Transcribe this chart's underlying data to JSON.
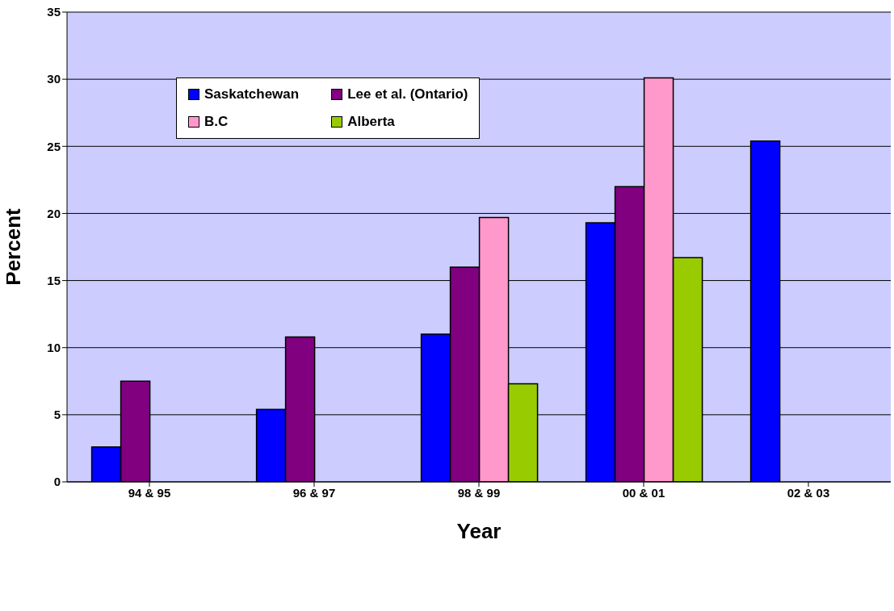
{
  "chart_data": {
    "type": "bar",
    "xlabel": "Year",
    "ylabel": "Percent",
    "categories": [
      "94 & 95",
      "96 & 97",
      "98 & 99",
      "00 & 01",
      "02 & 03"
    ],
    "series": [
      {
        "name": "Saskatchewan",
        "color": "#0000ff",
        "values": [
          2.6,
          5.4,
          11.0,
          19.3,
          25.4
        ]
      },
      {
        "name": "Lee et al. (Ontario)",
        "color": "#800080",
        "values": [
          7.5,
          10.8,
          16.0,
          22.0,
          null
        ]
      },
      {
        "name": "B.C",
        "color": "#ff99cc",
        "values": [
          null,
          null,
          19.7,
          30.1,
          null
        ]
      },
      {
        "name": "Alberta",
        "color": "#99cc00",
        "values": [
          null,
          null,
          7.3,
          16.7,
          null
        ]
      }
    ],
    "ylim": [
      0,
      35
    ],
    "yticks": [
      0,
      5,
      10,
      15,
      20,
      25,
      30,
      35
    ],
    "grid": "y",
    "legend": "top left"
  }
}
